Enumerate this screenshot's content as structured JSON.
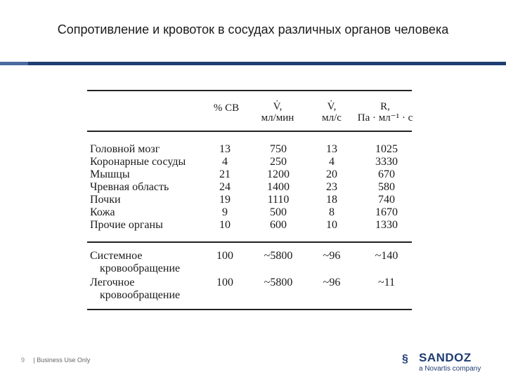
{
  "slide": {
    "title": "Сопротивление и кровоток в сосудах различных органов человека",
    "page_number": "9",
    "footer_text": "| Business Use Only"
  },
  "logo": {
    "brand": "SANDOZ",
    "subtitle": "a Novartis company"
  },
  "table": {
    "headers": [
      [
        "% СВ",
        ""
      ],
      [
        "V̇,",
        "мл/мин"
      ],
      [
        "V̇,",
        "мл/с"
      ],
      [
        "R,",
        "Па · мл⁻¹ · с"
      ]
    ],
    "rows": [
      {
        "label": [
          "Головной мозг"
        ],
        "values": [
          "13",
          "750",
          "13",
          "1025"
        ]
      },
      {
        "label": [
          "Коронарные сосуды"
        ],
        "values": [
          "4",
          "250",
          "4",
          "3330"
        ]
      },
      {
        "label": [
          "Мышцы"
        ],
        "values": [
          "21",
          "1200",
          "20",
          "670"
        ]
      },
      {
        "label": [
          "Чревная область"
        ],
        "values": [
          "24",
          "1400",
          "23",
          "580"
        ]
      },
      {
        "label": [
          "Почки"
        ],
        "values": [
          "19",
          "1110",
          "18",
          "740"
        ]
      },
      {
        "label": [
          "Кожа"
        ],
        "values": [
          "9",
          "500",
          "8",
          "1670"
        ]
      },
      {
        "label": [
          "Прочие органы"
        ],
        "values": [
          "10",
          "600",
          "10",
          "1330"
        ]
      }
    ],
    "summary_rows": [
      {
        "label": [
          "Системное",
          "кровообращение"
        ],
        "values": [
          "100",
          "~5800",
          "~96",
          "~140"
        ]
      },
      {
        "label": [
          "Легочное",
          "кровообращение"
        ],
        "values": [
          "100",
          "~5800",
          "~96",
          "~11"
        ]
      }
    ]
  }
}
